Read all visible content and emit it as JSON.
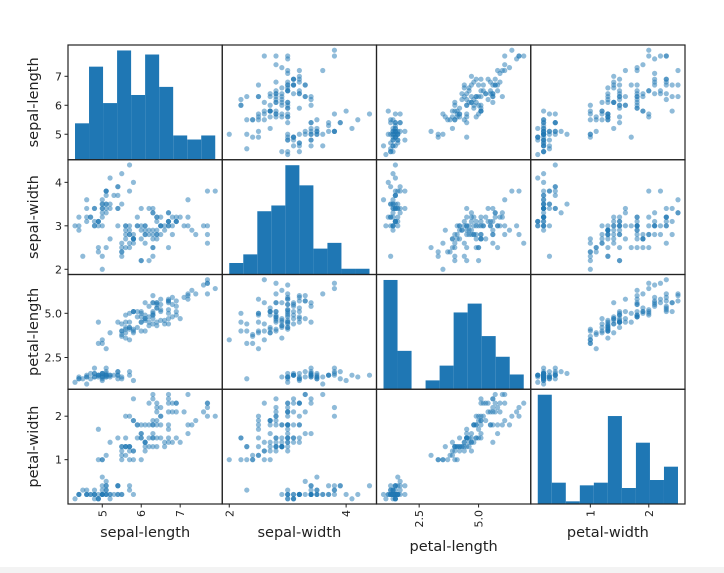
{
  "chart_data": {
    "type": "scatter",
    "subtype": "scatter-matrix",
    "variables": [
      "sepal-length",
      "sepal-width",
      "petal-length",
      "petal-width"
    ],
    "diagonal": "histogram",
    "hist_bins": 10,
    "color": "#1f77b4",
    "point_alpha": 0.5,
    "grid": false,
    "axis_ranges": {
      "sepal-length": [
        4.12,
        8.08
      ],
      "sepal-width": [
        1.88,
        4.52
      ],
      "petal-length": [
        0.705,
        7.195
      ],
      "petal-width": [
        -0.02,
        2.62
      ]
    },
    "x_ticks": {
      "sepal-length": [
        "5",
        "6",
        "7"
      ],
      "sepal-width": [
        "2",
        "4"
      ],
      "petal-length": [
        "2.5",
        "5.0"
      ],
      "petal-width": [
        "1",
        "2"
      ]
    },
    "y_ticks": {
      "sepal-length": [
        "5",
        "6",
        "7"
      ],
      "sepal-width": [
        "2",
        "3",
        "4"
      ],
      "petal-length": [
        "2.5",
        "5.0"
      ],
      "petal-width": [
        "1",
        "2"
      ]
    },
    "rows": [
      [
        5.1,
        3.5,
        1.4,
        0.2
      ],
      [
        4.9,
        3.0,
        1.4,
        0.2
      ],
      [
        4.7,
        3.2,
        1.3,
        0.2
      ],
      [
        4.6,
        3.1,
        1.5,
        0.2
      ],
      [
        5.0,
        3.6,
        1.4,
        0.2
      ],
      [
        5.4,
        3.9,
        1.7,
        0.4
      ],
      [
        4.6,
        3.4,
        1.4,
        0.3
      ],
      [
        5.0,
        3.4,
        1.5,
        0.2
      ],
      [
        4.4,
        2.9,
        1.4,
        0.2
      ],
      [
        4.9,
        3.1,
        1.5,
        0.1
      ],
      [
        5.4,
        3.7,
        1.5,
        0.2
      ],
      [
        4.8,
        3.4,
        1.6,
        0.2
      ],
      [
        4.8,
        3.0,
        1.4,
        0.1
      ],
      [
        4.3,
        3.0,
        1.1,
        0.1
      ],
      [
        5.8,
        4.0,
        1.2,
        0.2
      ],
      [
        5.7,
        4.4,
        1.5,
        0.4
      ],
      [
        5.4,
        3.9,
        1.3,
        0.4
      ],
      [
        5.1,
        3.5,
        1.4,
        0.3
      ],
      [
        5.7,
        3.8,
        1.7,
        0.3
      ],
      [
        5.1,
        3.8,
        1.5,
        0.3
      ],
      [
        5.4,
        3.4,
        1.7,
        0.2
      ],
      [
        5.1,
        3.7,
        1.5,
        0.4
      ],
      [
        4.6,
        3.6,
        1.0,
        0.2
      ],
      [
        5.1,
        3.3,
        1.7,
        0.5
      ],
      [
        4.8,
        3.4,
        1.9,
        0.2
      ],
      [
        5.0,
        3.0,
        1.6,
        0.2
      ],
      [
        5.0,
        3.4,
        1.6,
        0.4
      ],
      [
        5.2,
        3.5,
        1.5,
        0.2
      ],
      [
        5.2,
        3.4,
        1.4,
        0.2
      ],
      [
        4.7,
        3.2,
        1.6,
        0.2
      ],
      [
        4.8,
        3.1,
        1.6,
        0.2
      ],
      [
        5.4,
        3.4,
        1.5,
        0.4
      ],
      [
        5.2,
        4.1,
        1.5,
        0.1
      ],
      [
        5.5,
        4.2,
        1.4,
        0.2
      ],
      [
        4.9,
        3.1,
        1.5,
        0.1
      ],
      [
        5.0,
        3.2,
        1.2,
        0.2
      ],
      [
        5.5,
        3.5,
        1.3,
        0.2
      ],
      [
        4.9,
        3.1,
        1.5,
        0.1
      ],
      [
        4.4,
        3.0,
        1.3,
        0.2
      ],
      [
        5.1,
        3.4,
        1.5,
        0.2
      ],
      [
        5.0,
        3.5,
        1.3,
        0.3
      ],
      [
        4.5,
        2.3,
        1.3,
        0.3
      ],
      [
        4.4,
        3.2,
        1.3,
        0.2
      ],
      [
        5.0,
        3.5,
        1.6,
        0.6
      ],
      [
        5.1,
        3.8,
        1.9,
        0.4
      ],
      [
        4.8,
        3.0,
        1.4,
        0.3
      ],
      [
        5.1,
        3.8,
        1.6,
        0.2
      ],
      [
        4.6,
        3.2,
        1.4,
        0.2
      ],
      [
        5.3,
        3.7,
        1.5,
        0.2
      ],
      [
        5.0,
        3.3,
        1.4,
        0.2
      ],
      [
        7.0,
        3.2,
        4.7,
        1.4
      ],
      [
        6.4,
        3.2,
        4.5,
        1.5
      ],
      [
        6.9,
        3.1,
        4.9,
        1.5
      ],
      [
        5.5,
        2.3,
        4.0,
        1.3
      ],
      [
        6.5,
        2.8,
        4.6,
        1.5
      ],
      [
        5.7,
        2.8,
        4.5,
        1.3
      ],
      [
        6.3,
        3.3,
        4.7,
        1.6
      ],
      [
        4.9,
        2.4,
        3.3,
        1.0
      ],
      [
        6.6,
        2.9,
        4.6,
        1.3
      ],
      [
        5.2,
        2.7,
        3.9,
        1.4
      ],
      [
        5.0,
        2.0,
        3.5,
        1.0
      ],
      [
        5.9,
        3.0,
        4.2,
        1.5
      ],
      [
        6.0,
        2.2,
        4.0,
        1.0
      ],
      [
        6.1,
        2.9,
        4.7,
        1.4
      ],
      [
        5.6,
        2.9,
        3.6,
        1.3
      ],
      [
        6.7,
        3.1,
        4.4,
        1.4
      ],
      [
        5.6,
        3.0,
        4.5,
        1.5
      ],
      [
        5.8,
        2.7,
        4.1,
        1.0
      ],
      [
        6.2,
        2.2,
        4.5,
        1.5
      ],
      [
        5.6,
        2.5,
        3.9,
        1.1
      ],
      [
        5.9,
        3.2,
        4.8,
        1.8
      ],
      [
        6.1,
        2.8,
        4.0,
        1.3
      ],
      [
        6.3,
        2.5,
        4.9,
        1.5
      ],
      [
        6.1,
        2.8,
        4.7,
        1.2
      ],
      [
        6.4,
        2.9,
        4.3,
        1.3
      ],
      [
        6.6,
        3.0,
        4.4,
        1.4
      ],
      [
        6.8,
        2.8,
        4.8,
        1.4
      ],
      [
        6.7,
        3.0,
        5.0,
        1.7
      ],
      [
        6.0,
        2.9,
        4.5,
        1.5
      ],
      [
        5.7,
        2.6,
        3.5,
        1.0
      ],
      [
        5.5,
        2.4,
        3.8,
        1.1
      ],
      [
        5.5,
        2.4,
        3.7,
        1.0
      ],
      [
        5.8,
        2.7,
        3.9,
        1.2
      ],
      [
        6.0,
        2.7,
        5.1,
        1.6
      ],
      [
        5.4,
        3.0,
        4.5,
        1.5
      ],
      [
        6.0,
        3.4,
        4.5,
        1.6
      ],
      [
        6.7,
        3.1,
        4.7,
        1.5
      ],
      [
        6.3,
        2.3,
        4.4,
        1.3
      ],
      [
        5.6,
        3.0,
        4.1,
        1.3
      ],
      [
        5.5,
        2.5,
        4.0,
        1.3
      ],
      [
        5.5,
        2.6,
        4.4,
        1.2
      ],
      [
        6.1,
        3.0,
        4.6,
        1.4
      ],
      [
        5.8,
        2.6,
        4.0,
        1.2
      ],
      [
        5.0,
        2.3,
        3.3,
        1.0
      ],
      [
        5.6,
        2.7,
        4.2,
        1.3
      ],
      [
        5.7,
        3.0,
        4.2,
        1.2
      ],
      [
        5.7,
        2.9,
        4.2,
        1.3
      ],
      [
        6.2,
        2.9,
        4.3,
        1.3
      ],
      [
        5.1,
        2.5,
        3.0,
        1.1
      ],
      [
        5.7,
        2.8,
        4.1,
        1.3
      ],
      [
        6.3,
        3.3,
        6.0,
        2.5
      ],
      [
        5.8,
        2.7,
        5.1,
        1.9
      ],
      [
        7.1,
        3.0,
        5.9,
        2.1
      ],
      [
        6.3,
        2.9,
        5.6,
        1.8
      ],
      [
        6.5,
        3.0,
        5.8,
        2.2
      ],
      [
        7.6,
        3.0,
        6.6,
        2.1
      ],
      [
        4.9,
        2.5,
        4.5,
        1.7
      ],
      [
        7.3,
        2.9,
        6.3,
        1.8
      ],
      [
        6.7,
        2.5,
        5.8,
        1.8
      ],
      [
        7.2,
        3.6,
        6.1,
        2.5
      ],
      [
        6.5,
        3.2,
        5.1,
        2.0
      ],
      [
        6.4,
        2.7,
        5.3,
        1.9
      ],
      [
        6.8,
        3.0,
        5.5,
        2.1
      ],
      [
        5.7,
        2.5,
        5.0,
        2.0
      ],
      [
        5.8,
        2.8,
        5.1,
        2.4
      ],
      [
        6.4,
        3.2,
        5.3,
        2.3
      ],
      [
        6.5,
        3.0,
        5.5,
        1.8
      ],
      [
        7.7,
        3.8,
        6.7,
        2.2
      ],
      [
        7.7,
        2.6,
        6.9,
        2.3
      ],
      [
        6.0,
        2.2,
        5.0,
        1.5
      ],
      [
        6.9,
        3.2,
        5.7,
        2.3
      ],
      [
        5.6,
        2.8,
        4.9,
        2.0
      ],
      [
        7.7,
        2.8,
        6.7,
        2.0
      ],
      [
        6.3,
        2.7,
        4.9,
        1.8
      ],
      [
        6.7,
        3.3,
        5.7,
        2.1
      ],
      [
        7.2,
        3.2,
        6.0,
        1.8
      ],
      [
        6.2,
        2.8,
        4.8,
        1.8
      ],
      [
        6.1,
        3.0,
        4.9,
        1.8
      ],
      [
        6.4,
        2.8,
        5.6,
        2.1
      ],
      [
        7.2,
        3.0,
        5.8,
        1.6
      ],
      [
        7.4,
        2.8,
        6.1,
        1.9
      ],
      [
        7.9,
        3.8,
        6.4,
        2.0
      ],
      [
        6.4,
        2.8,
        5.6,
        2.2
      ],
      [
        6.3,
        2.8,
        5.1,
        1.5
      ],
      [
        6.1,
        2.6,
        5.6,
        1.4
      ],
      [
        7.7,
        3.0,
        6.1,
        2.3
      ],
      [
        6.3,
        3.4,
        5.6,
        2.4
      ],
      [
        6.4,
        3.1,
        5.5,
        1.8
      ],
      [
        6.0,
        3.0,
        4.8,
        1.8
      ],
      [
        6.9,
        3.1,
        5.4,
        2.1
      ],
      [
        6.7,
        3.1,
        5.6,
        2.4
      ],
      [
        6.9,
        3.1,
        5.1,
        2.3
      ],
      [
        5.8,
        2.7,
        5.1,
        1.9
      ],
      [
        6.8,
        3.2,
        5.9,
        2.3
      ],
      [
        6.7,
        3.3,
        5.7,
        2.5
      ],
      [
        6.7,
        3.0,
        5.2,
        2.3
      ],
      [
        6.3,
        2.5,
        5.0,
        1.9
      ],
      [
        6.5,
        3.0,
        5.2,
        2.0
      ],
      [
        6.2,
        3.4,
        5.4,
        2.3
      ],
      [
        5.9,
        3.0,
        5.1,
        1.8
      ]
    ]
  }
}
